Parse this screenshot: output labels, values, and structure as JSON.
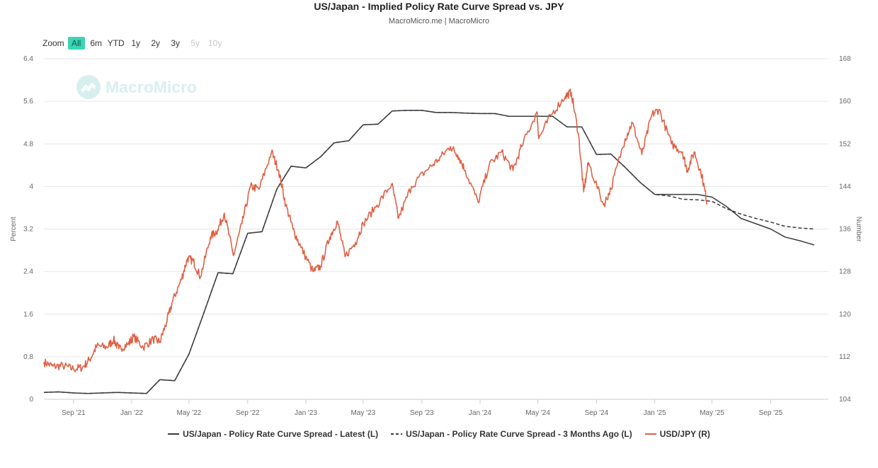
{
  "header": {
    "title": "US/Japan - Implied Policy Rate Curve Spread vs. JPY",
    "subtitle": "MacroMicro.me | MacroMicro"
  },
  "zoom": {
    "label": "Zoom",
    "buttons": [
      {
        "label": "All",
        "state": "active"
      },
      {
        "label": "6m",
        "state": "normal"
      },
      {
        "label": "YTD",
        "state": "normal"
      },
      {
        "label": "1y",
        "state": "normal"
      },
      {
        "label": "2y",
        "state": "normal"
      },
      {
        "label": "3y",
        "state": "normal"
      },
      {
        "label": "5y",
        "state": "disabled"
      },
      {
        "label": "10y",
        "state": "disabled"
      }
    ]
  },
  "watermark": {
    "text": "MacroMicro",
    "icon": "chart-logo-icon"
  },
  "colors": {
    "latest": "#3a3b40",
    "three_months_ago": "#3a3b40",
    "usdjpy": "#e06044",
    "grid": "#e6e6e6",
    "accent": "#39d5b5"
  },
  "chart_data": {
    "type": "line",
    "x_axis": {
      "type": "date",
      "range": [
        "2021-07-01",
        "2025-12-31"
      ],
      "tick_labels": [
        {
          "date": "2021-09-01",
          "label": "Sep '21"
        },
        {
          "date": "2022-01-01",
          "label": "Jan '22"
        },
        {
          "date": "2022-05-01",
          "label": "May '22"
        },
        {
          "date": "2022-09-01",
          "label": "Sep '22"
        },
        {
          "date": "2023-01-01",
          "label": "Jan '23"
        },
        {
          "date": "2023-05-01",
          "label": "May '23"
        },
        {
          "date": "2023-09-01",
          "label": "Sep '23"
        },
        {
          "date": "2024-01-01",
          "label": "Jan '24"
        },
        {
          "date": "2024-05-01",
          "label": "May '24"
        },
        {
          "date": "2024-09-01",
          "label": "Sep '24"
        },
        {
          "date": "2025-01-01",
          "label": "Jan '25"
        },
        {
          "date": "2025-05-01",
          "label": "May '25"
        },
        {
          "date": "2025-09-01",
          "label": "Sep '25"
        }
      ]
    },
    "y_left": {
      "label": "Percent",
      "min": 0,
      "max": 6.4,
      "ticks": [
        0,
        0.8,
        1.6,
        2.4,
        3.2,
        4,
        4.8,
        5.6,
        6.4
      ],
      "tick_labels": [
        "0",
        "0.8",
        "1.6",
        "2.4",
        "3.2",
        "4",
        "4.8",
        "5.6",
        "6.4"
      ]
    },
    "y_right": {
      "label": "Number",
      "min": 104,
      "max": 168,
      "ticks": [
        104,
        112,
        120,
        128,
        136,
        144,
        152,
        160,
        168
      ],
      "tick_labels": [
        "104",
        "112",
        "120",
        "128",
        "136",
        "144",
        "152",
        "160",
        "168"
      ]
    },
    "grid": true,
    "legend_position": "bottom-center",
    "series": [
      {
        "name": "US/Japan - Policy Rate Curve Spread - Latest (L)",
        "axis": "left",
        "style": "solid",
        "points": [
          [
            "2021-07-01",
            0.13
          ],
          [
            "2021-08-01",
            0.14
          ],
          [
            "2021-09-01",
            0.12
          ],
          [
            "2021-10-01",
            0.11
          ],
          [
            "2021-11-01",
            0.12
          ],
          [
            "2021-12-01",
            0.13
          ],
          [
            "2022-01-01",
            0.12
          ],
          [
            "2022-02-01",
            0.11
          ],
          [
            "2022-03-01",
            0.37
          ],
          [
            "2022-04-01",
            0.35
          ],
          [
            "2022-05-01",
            0.85
          ],
          [
            "2022-06-01",
            1.62
          ],
          [
            "2022-07-01",
            2.38
          ],
          [
            "2022-08-01",
            2.36
          ],
          [
            "2022-09-01",
            3.12
          ],
          [
            "2022-10-01",
            3.15
          ],
          [
            "2022-11-01",
            3.95
          ],
          [
            "2022-12-01",
            4.38
          ],
          [
            "2023-01-01",
            4.35
          ],
          [
            "2023-02-01",
            4.56
          ],
          [
            "2023-03-01",
            4.82
          ],
          [
            "2023-04-01",
            4.86
          ],
          [
            "2023-05-01",
            5.16
          ],
          [
            "2023-06-01",
            5.17
          ],
          [
            "2023-07-01",
            5.42
          ],
          [
            "2023-08-01",
            5.43
          ],
          [
            "2023-09-01",
            5.43
          ],
          [
            "2023-10-01",
            5.39
          ],
          [
            "2023-11-01",
            5.39
          ],
          [
            "2023-12-01",
            5.38
          ],
          [
            "2024-01-01",
            5.37
          ],
          [
            "2024-02-01",
            5.37
          ],
          [
            "2024-03-01",
            5.32
          ],
          [
            "2024-04-01",
            5.32
          ],
          [
            "2024-05-01",
            5.32
          ],
          [
            "2024-06-01",
            5.32
          ],
          [
            "2024-07-01",
            5.12
          ],
          [
            "2024-08-01",
            5.12
          ],
          [
            "2024-09-01",
            4.6
          ],
          [
            "2024-10-01",
            4.61
          ],
          [
            "2024-11-01",
            4.35
          ],
          [
            "2024-12-01",
            4.08
          ],
          [
            "2025-01-01",
            3.85
          ],
          [
            "2025-02-01",
            3.85
          ],
          [
            "2025-03-01",
            3.85
          ],
          [
            "2025-04-01",
            3.85
          ],
          [
            "2025-05-01",
            3.8
          ],
          [
            "2025-06-01",
            3.62
          ],
          [
            "2025-07-01",
            3.4
          ],
          [
            "2025-08-01",
            3.3
          ],
          [
            "2025-09-01",
            3.2
          ],
          [
            "2025-10-01",
            3.05
          ],
          [
            "2025-11-01",
            2.98
          ],
          [
            "2025-12-01",
            2.9
          ]
        ]
      },
      {
        "name": "US/Japan - Policy Rate Curve Spread - 3 Months Ago (L)",
        "axis": "left",
        "style": "dashed",
        "points": [
          [
            "2021-07-01",
            0.13
          ],
          [
            "2021-08-01",
            0.14
          ],
          [
            "2021-09-01",
            0.12
          ],
          [
            "2021-10-01",
            0.11
          ],
          [
            "2021-11-01",
            0.12
          ],
          [
            "2021-12-01",
            0.13
          ],
          [
            "2022-01-01",
            0.12
          ],
          [
            "2022-02-01",
            0.11
          ],
          [
            "2022-03-01",
            0.37
          ],
          [
            "2022-04-01",
            0.35
          ],
          [
            "2022-05-01",
            0.85
          ],
          [
            "2022-06-01",
            1.62
          ],
          [
            "2022-07-01",
            2.38
          ],
          [
            "2022-08-01",
            2.36
          ],
          [
            "2022-09-01",
            3.12
          ],
          [
            "2022-10-01",
            3.15
          ],
          [
            "2022-11-01",
            3.95
          ],
          [
            "2022-12-01",
            4.38
          ],
          [
            "2023-01-01",
            4.35
          ],
          [
            "2023-02-01",
            4.56
          ],
          [
            "2023-03-01",
            4.82
          ],
          [
            "2023-04-01",
            4.86
          ],
          [
            "2023-05-01",
            5.16
          ],
          [
            "2023-06-01",
            5.17
          ],
          [
            "2023-07-01",
            5.42
          ],
          [
            "2023-08-01",
            5.43
          ],
          [
            "2023-09-01",
            5.43
          ],
          [
            "2023-10-01",
            5.39
          ],
          [
            "2023-11-01",
            5.39
          ],
          [
            "2023-12-01",
            5.38
          ],
          [
            "2024-01-01",
            5.37
          ],
          [
            "2024-02-01",
            5.37
          ],
          [
            "2024-03-01",
            5.32
          ],
          [
            "2024-04-01",
            5.32
          ],
          [
            "2024-05-01",
            5.32
          ],
          [
            "2024-06-01",
            5.32
          ],
          [
            "2024-07-01",
            5.12
          ],
          [
            "2024-08-01",
            5.12
          ],
          [
            "2024-09-01",
            4.6
          ],
          [
            "2024-10-01",
            4.61
          ],
          [
            "2024-11-01",
            4.35
          ],
          [
            "2024-12-01",
            4.08
          ],
          [
            "2025-01-01",
            3.85
          ],
          [
            "2025-02-01",
            3.82
          ],
          [
            "2025-03-01",
            3.76
          ],
          [
            "2025-04-01",
            3.75
          ],
          [
            "2025-05-01",
            3.72
          ],
          [
            "2025-06-01",
            3.58
          ],
          [
            "2025-07-01",
            3.48
          ],
          [
            "2025-08-01",
            3.4
          ],
          [
            "2025-09-01",
            3.33
          ],
          [
            "2025-10-01",
            3.25
          ],
          [
            "2025-11-01",
            3.22
          ],
          [
            "2025-12-01",
            3.2
          ]
        ]
      },
      {
        "name": "USD/JPY (R)",
        "axis": "right",
        "style": "solid",
        "points": [
          [
            "2021-07-01",
            111.0
          ],
          [
            "2021-07-20",
            110.2
          ],
          [
            "2021-08-10",
            110.3
          ],
          [
            "2021-09-01",
            109.7
          ],
          [
            "2021-09-20",
            110.0
          ],
          [
            "2021-10-05",
            111.5
          ],
          [
            "2021-10-20",
            114.0
          ],
          [
            "2021-11-10",
            113.8
          ],
          [
            "2021-11-24",
            115.2
          ],
          [
            "2021-12-05",
            113.5
          ],
          [
            "2021-12-25",
            114.4
          ],
          [
            "2022-01-05",
            115.8
          ],
          [
            "2022-01-25",
            113.8
          ],
          [
            "2022-02-15",
            115.3
          ],
          [
            "2022-03-01",
            114.8
          ],
          [
            "2022-03-15",
            118.5
          ],
          [
            "2022-03-28",
            122.5
          ],
          [
            "2022-04-15",
            126.5
          ],
          [
            "2022-04-28",
            130.5
          ],
          [
            "2022-05-10",
            130.0
          ],
          [
            "2022-05-25",
            127.0
          ],
          [
            "2022-06-15",
            134.5
          ],
          [
            "2022-06-30",
            135.8
          ],
          [
            "2022-07-14",
            139.0
          ],
          [
            "2022-08-02",
            131.0
          ],
          [
            "2022-08-20",
            137.0
          ],
          [
            "2022-09-07",
            144.0
          ],
          [
            "2022-09-25",
            143.5
          ],
          [
            "2022-10-21",
            150.5
          ],
          [
            "2022-11-05",
            147.0
          ],
          [
            "2022-11-20",
            140.5
          ],
          [
            "2022-12-05",
            136.0
          ],
          [
            "2022-12-22",
            132.5
          ],
          [
            "2023-01-16",
            128.0
          ],
          [
            "2023-02-01",
            129.0
          ],
          [
            "2023-02-20",
            134.5
          ],
          [
            "2023-03-08",
            137.5
          ],
          [
            "2023-03-24",
            130.8
          ],
          [
            "2023-04-15",
            133.5
          ],
          [
            "2023-05-01",
            137.0
          ],
          [
            "2023-05-30",
            140.5
          ],
          [
            "2023-06-30",
            144.5
          ],
          [
            "2023-07-14",
            138.0
          ],
          [
            "2023-08-10",
            144.0
          ],
          [
            "2023-09-10",
            147.0
          ],
          [
            "2023-10-05",
            149.0
          ],
          [
            "2023-10-31",
            151.5
          ],
          [
            "2023-11-15",
            150.0
          ],
          [
            "2023-12-01",
            147.0
          ],
          [
            "2023-12-28",
            141.0
          ],
          [
            "2024-01-20",
            148.0
          ],
          [
            "2024-02-15",
            150.5
          ],
          [
            "2024-03-10",
            147.0
          ],
          [
            "2024-03-28",
            151.5
          ],
          [
            "2024-04-29",
            158.0
          ],
          [
            "2024-05-03",
            153.0
          ],
          [
            "2024-05-29",
            157.5
          ],
          [
            "2024-06-28",
            161.0
          ],
          [
            "2024-07-10",
            161.7
          ],
          [
            "2024-07-25",
            154.0
          ],
          [
            "2024-08-05",
            143.0
          ],
          [
            "2024-08-15",
            148.5
          ],
          [
            "2024-09-16",
            140.5
          ],
          [
            "2024-10-01",
            143.5
          ],
          [
            "2024-10-31",
            153.0
          ],
          [
            "2024-11-15",
            156.0
          ],
          [
            "2024-12-05",
            150.0
          ],
          [
            "2024-12-26",
            157.5
          ],
          [
            "2025-01-10",
            158.5
          ],
          [
            "2025-02-05",
            152.0
          ],
          [
            "2025-02-28",
            150.5
          ],
          [
            "2025-03-10",
            147.0
          ],
          [
            "2025-03-25",
            150.5
          ],
          [
            "2025-04-10",
            146.0
          ],
          [
            "2025-04-21",
            140.8
          ]
        ]
      }
    ]
  }
}
